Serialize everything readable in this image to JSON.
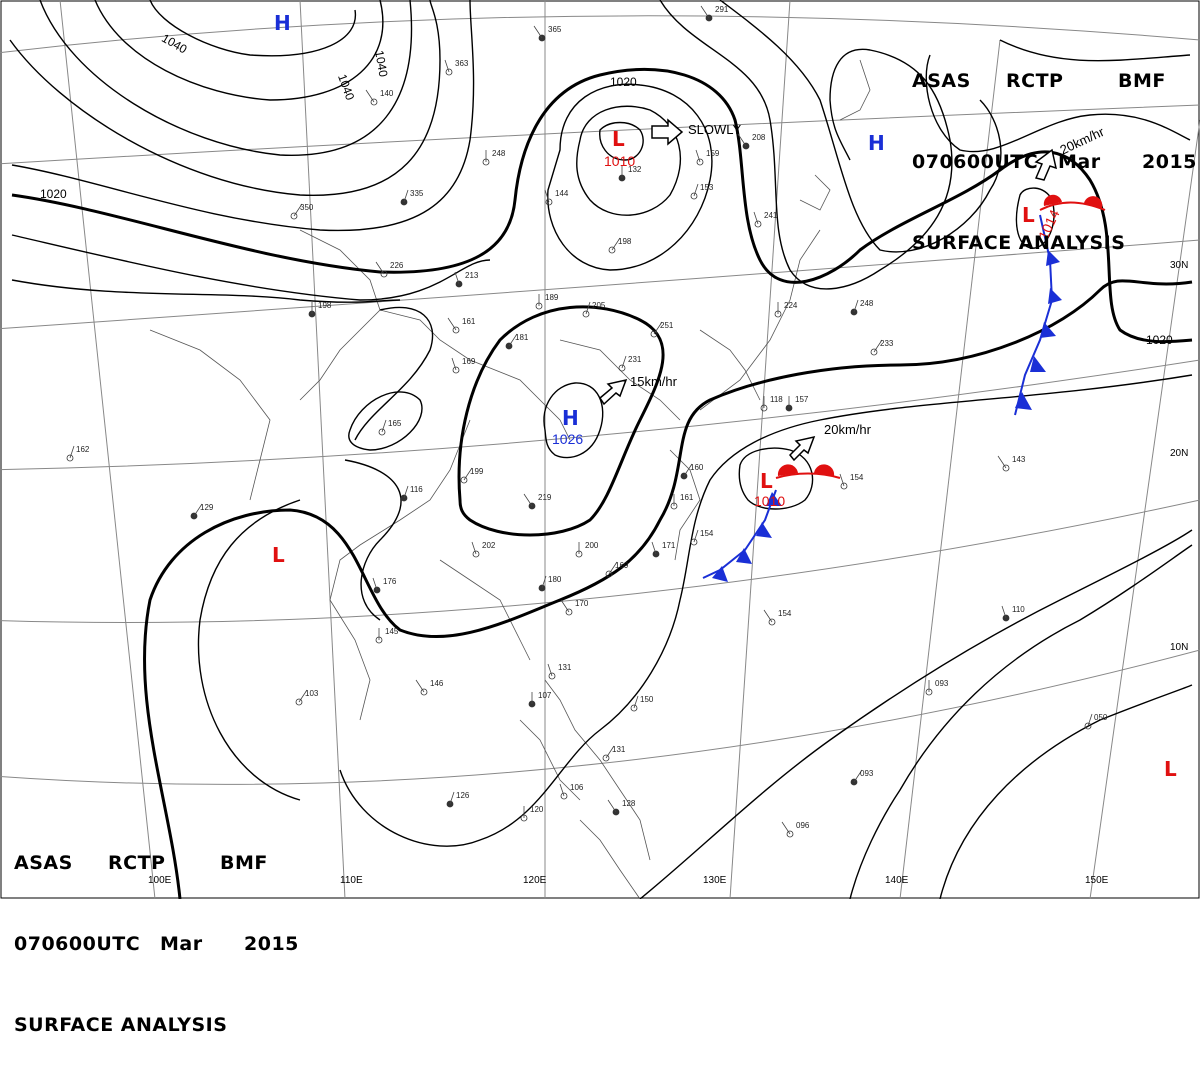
{
  "header_top_right": {
    "agency": "ASAS",
    "center": "RCTP",
    "office": "BMF",
    "time": "070600UTC",
    "month": "Mar",
    "year": "2015",
    "title": "SURFACE ANALYSIS"
  },
  "header_bottom_left": {
    "agency": "ASAS",
    "center": "RCTP",
    "office": "BMF",
    "time": "070600UTC",
    "month": "Mar",
    "year": "2015",
    "title": "SURFACE ANALYSIS"
  },
  "colors": {
    "high": "#1a2fd6",
    "low": "#e01010",
    "cold_front": "#1a2fd6",
    "warm_front": "#e01010"
  },
  "isobar_labels": [
    "1040",
    "1040",
    "1040",
    "1020",
    "1020",
    "1020"
  ],
  "longitude_labels": [
    "100E",
    "110E",
    "120E",
    "130E",
    "140E",
    "150E"
  ],
  "latitude_labels": [
    "30N",
    "20N",
    "10N"
  ],
  "highs": [
    {
      "symbol": "H",
      "pressure": ""
    },
    {
      "symbol": "H",
      "pressure": ""
    },
    {
      "symbol": "H",
      "pressure": "1026"
    }
  ],
  "lows": [
    {
      "symbol": "L",
      "pressure": "1010"
    },
    {
      "symbol": "L",
      "pressure": "1014"
    },
    {
      "symbol": "L",
      "pressure": "1010"
    },
    {
      "symbol": "L",
      "pressure": ""
    },
    {
      "symbol": "L",
      "pressure": ""
    }
  ],
  "motions": [
    "SLOWLY",
    "15km/hr",
    "20km/hr",
    "20km/hr"
  ],
  "station_obs": [
    "365",
    "363",
    "248",
    "335",
    "350",
    "226",
    "213",
    "189",
    "205",
    "181",
    "161",
    "169",
    "198",
    "165",
    "199",
    "219",
    "202",
    "200",
    "180",
    "169",
    "170",
    "171",
    "161",
    "154",
    "160",
    "154",
    "131",
    "107",
    "150",
    "131",
    "128",
    "106",
    "120",
    "126",
    "103",
    "146",
    "176",
    "145",
    "162",
    "129",
    "140",
    "159",
    "132",
    "153",
    "198",
    "208",
    "241",
    "224",
    "248",
    "233",
    "143",
    "110",
    "093",
    "050",
    "093",
    "096",
    "154",
    "157",
    "231",
    "251",
    "291",
    "144",
    "118",
    "116"
  ]
}
